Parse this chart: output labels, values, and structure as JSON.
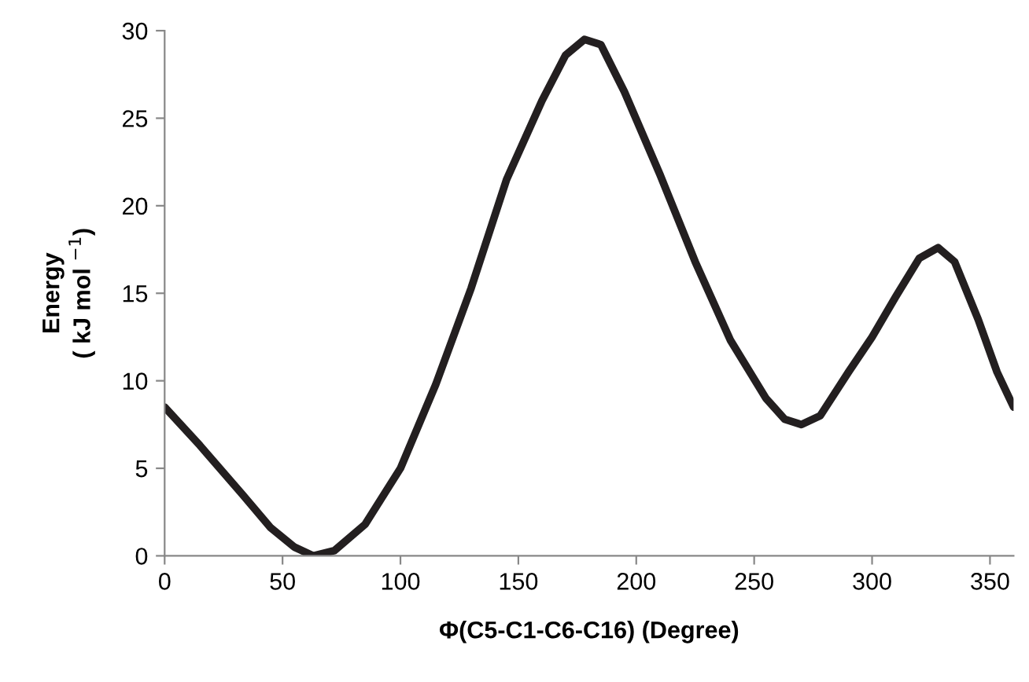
{
  "chart_data": {
    "type": "line",
    "xlabel": "Φ(C5-C1-C6-C16) (Degree)",
    "ylabel": "Energy\n( kJ mol $^{−1}$)",
    "x": [
      0,
      15,
      33,
      45,
      55,
      63,
      72,
      85,
      100,
      115,
      130,
      145,
      160,
      170,
      178,
      185,
      195,
      210,
      225,
      240,
      255,
      263,
      270,
      278,
      290,
      300,
      310,
      320,
      328,
      335,
      345,
      353,
      360
    ],
    "series": [
      {
        "color": "#231f20",
        "values": [
          8.5,
          6.3,
          3.5,
          1.6,
          0.5,
          0,
          0.3,
          1.8,
          5,
          9.8,
          15.3,
          21.5,
          26,
          28.6,
          29.5,
          29.2,
          26.5,
          21.8,
          16.8,
          12.3,
          9,
          7.8,
          7.5,
          8,
          10.5,
          12.5,
          14.8,
          17,
          17.6,
          16.8,
          13.5,
          10.5,
          8.5
        ]
      }
    ],
    "xlim": [
      0,
      360
    ],
    "xticks": [
      0,
      50,
      100,
      150,
      200,
      250,
      300,
      350
    ],
    "ylim": [
      0,
      30
    ],
    "yticks": [
      0,
      5,
      10,
      15,
      20,
      25,
      30
    ],
    "grid": false,
    "legend": false,
    "marker": "none",
    "line_style": "solid"
  }
}
